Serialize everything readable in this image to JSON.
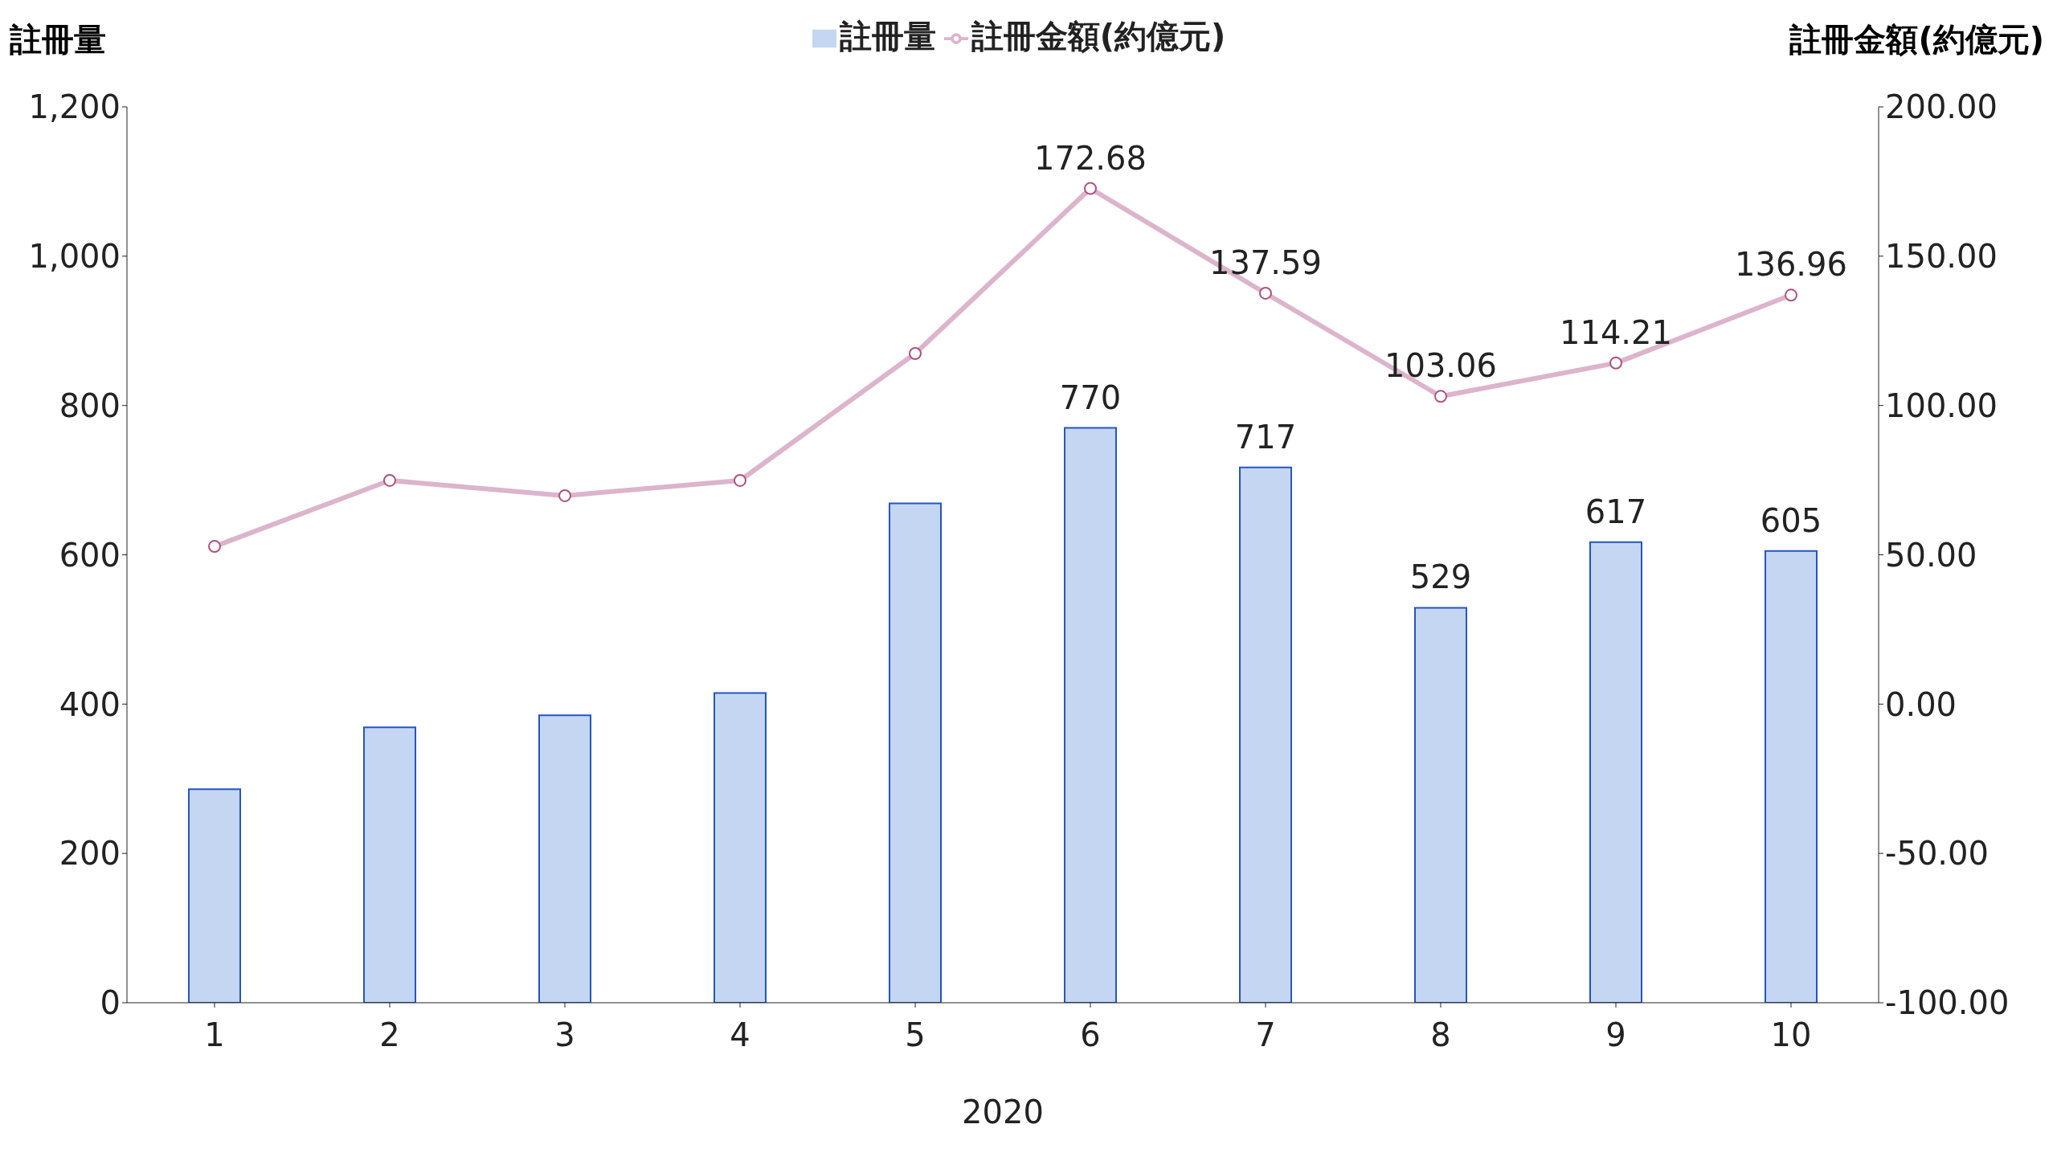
{
  "chart_data": {
    "type": "bar",
    "categories": [
      "1",
      "2",
      "3",
      "4",
      "5",
      "6",
      "7",
      "8",
      "9",
      "10"
    ],
    "xlabel": "2020",
    "ylabel": "註冊量",
    "y2label": "註冊金額(約億元)",
    "series": [
      {
        "name": "註冊量",
        "color": "#c5d6f2",
        "values": [
          286,
          369,
          385,
          415,
          669,
          770,
          717,
          529,
          617,
          605
        ],
        "value_labels": [
          null,
          null,
          null,
          null,
          null,
          "770",
          "717",
          "529",
          "617",
          "605"
        ]
      },
      {
        "name": "註冊金額(約億元)",
        "type": "line",
        "axis": "y2",
        "color": "#dcb4cc",
        "marker": "circle",
        "values": [
          52.8,
          74.9,
          69.8,
          74.9,
          117.4,
          172.68,
          137.59,
          103.06,
          114.21,
          136.96
        ],
        "value_labels": [
          null,
          null,
          null,
          null,
          null,
          "172.68",
          "137.59",
          "103.06",
          "114.21",
          "136.96"
        ]
      }
    ],
    "ylim": [
      0,
      1200
    ],
    "yticks": [
      0,
      200,
      400,
      600,
      800,
      {
        "value": 1000,
        "label": "1,000"
      },
      {
        "value": 1200,
        "label": "1,200"
      }
    ],
    "y2lim": [
      -100,
      200
    ],
    "y2ticks": [
      {
        "value": -100,
        "label": "-100.00"
      },
      {
        "value": -50,
        "label": "-50.00"
      },
      {
        "value": 0,
        "label": "0.00"
      },
      {
        "value": 50,
        "label": "50.00"
      },
      {
        "value": 100,
        "label": "100.00"
      },
      {
        "value": 150,
        "label": "150.00"
      },
      {
        "value": 200,
        "label": "200.00"
      }
    ],
    "grid": false,
    "legend": "top"
  }
}
